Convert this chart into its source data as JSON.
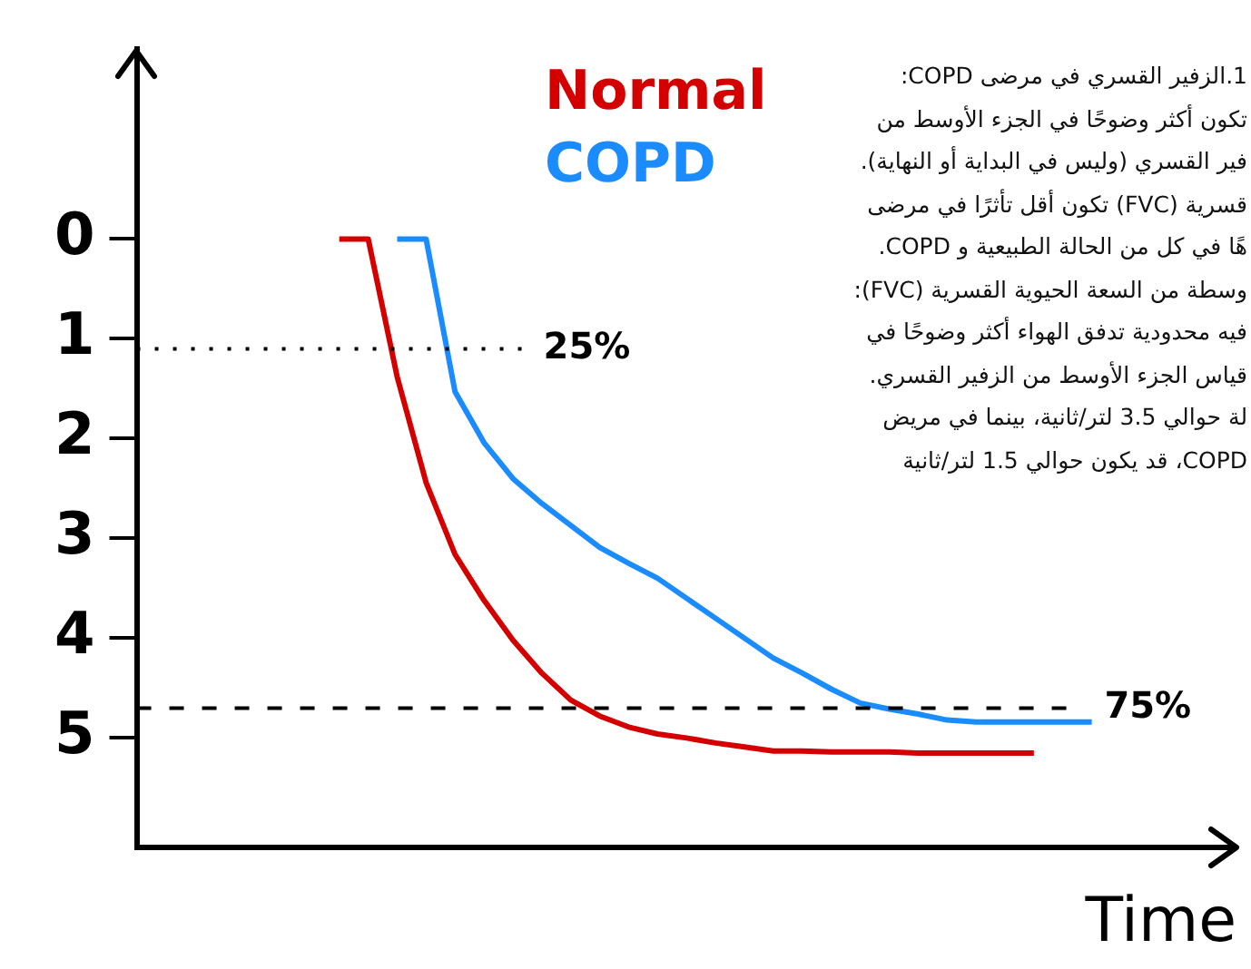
{
  "chart_data": {
    "type": "line",
    "xlabel": "Time",
    "categories": [
      null,
      null,
      null,
      null,
      null,
      null,
      null,
      null,
      null,
      null,
      null,
      null,
      null,
      null,
      null,
      null,
      null,
      null,
      null,
      null,
      null,
      null,
      null,
      null,
      null,
      null,
      null,
      null,
      null,
      null,
      null,
      null,
      null,
      null,
      null,
      null,
      null,
      null,
      null
    ],
    "ylim": [
      6.1,
      -1.9
    ],
    "yticks": [
      0,
      1,
      2,
      3,
      4,
      5
    ],
    "tick_labels": "y",
    "grid": false,
    "marker": "none",
    "line_style": "solid",
    "series": [
      {
        "name": "Normal",
        "color": "#d40000",
        "values": [
          null,
          null,
          null,
          null,
          null,
          null,
          null,
          0,
          0,
          1.38,
          2.44,
          3.16,
          3.62,
          4.02,
          4.35,
          4.62,
          4.78,
          4.89,
          4.96,
          5.0,
          5.05,
          5.09,
          5.13,
          5.13,
          5.14,
          5.14,
          5.14,
          5.15,
          5.15,
          5.15,
          5.15,
          5.15,
          null,
          null,
          null,
          null,
          null,
          null,
          null
        ]
      },
      {
        "name": "COPD",
        "color": "#1a8cff",
        "values": [
          null,
          null,
          null,
          null,
          null,
          null,
          null,
          null,
          null,
          0,
          0,
          1.53,
          2.04,
          2.4,
          2.65,
          2.87,
          3.09,
          3.25,
          3.4,
          3.6,
          3.8,
          4.0,
          4.2,
          4.35,
          4.51,
          4.65,
          4.71,
          4.76,
          4.82,
          4.84,
          4.84,
          4.84,
          4.84,
          4.84,
          null,
          null,
          null,
          null,
          null
        ]
      }
    ],
    "ref_lines": [
      {
        "axis": "y",
        "value": 1.1,
        "color": "#000000",
        "line_style": "dotted"
      },
      {
        "axis": "y",
        "value": 4.7,
        "color": "#000000",
        "line_style": "dashed"
      }
    ],
    "annotations": [
      "25%",
      "75%",
      "1.الزفير القسري في مرضى COPD:\nتكون أكثر وضوحًا في الجزء الأوسط من\nفير القسري (وليس في البداية أو النهاية).\nقسرية (FVC) تكون أقل تأثرًا في مرضى\nهًا في كل من الحالة الطبيعية و COPD.\nوسطة من السعة الحيوية القسرية (FVC):\nفيه محدودية تدفق الهواء أكثر وضوحًا في\nقياس الجزء الأوسط من الزفير القسري.\nلة حوالي 3.5 لتر/ثانية، بينما في مريض\nCOPD، قد يكون حوالي 1.5 لتر/ثانية"
    ]
  }
}
